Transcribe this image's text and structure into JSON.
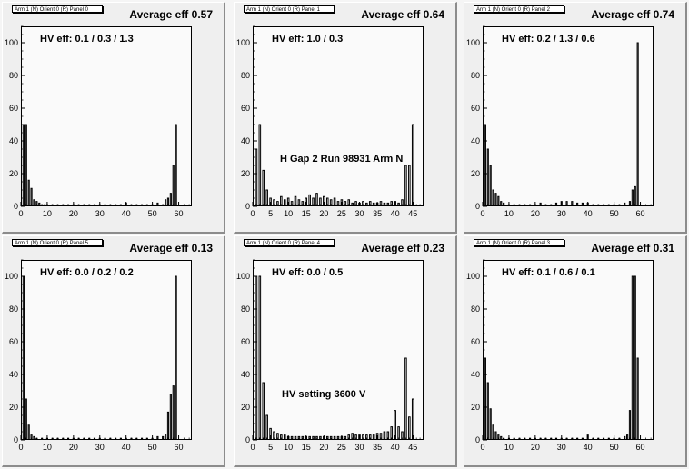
{
  "panels": [
    {
      "title": "Arm 1 (N) Orient 0 (R) Panel 0",
      "avg": "Average eff 0.57",
      "hv": "HV eff:   0.1 / 0.3 / 1.3",
      "note": "",
      "chart_data": {
        "type": "bar",
        "xlim": [
          0,
          65
        ],
        "ylim": [
          0,
          110
        ],
        "xticks": [
          0,
          10,
          20,
          30,
          40,
          50,
          60
        ],
        "yticks": [
          0,
          20,
          40,
          60,
          80,
          100
        ],
        "x": [
          1,
          2,
          3,
          4,
          5,
          6,
          7,
          8,
          9,
          10,
          12,
          14,
          16,
          18,
          20,
          22,
          24,
          26,
          28,
          30,
          32,
          34,
          36,
          38,
          40,
          42,
          44,
          46,
          48,
          50,
          52,
          54,
          55,
          56,
          57,
          58,
          59
        ],
        "values": [
          50,
          50,
          16,
          11,
          4,
          3,
          2,
          1,
          1,
          1,
          1,
          1,
          1,
          1,
          1,
          1,
          1,
          1,
          1,
          1,
          1,
          1,
          1,
          1,
          2,
          1,
          1,
          1,
          1,
          1,
          2,
          1,
          4,
          5,
          8,
          25,
          50
        ]
      }
    },
    {
      "title": "Arm 1 (N) Orient 0 (R) Panel 1",
      "avg": "Average eff 0.64",
      "hv": "HV eff:   1.0 / 0.3",
      "note": "H Gap 2 Run 98931 Arm N",
      "chart_data": {
        "type": "bar",
        "xlim": [
          0,
          48
        ],
        "ylim": [
          0,
          110
        ],
        "xticks": [
          0,
          5,
          10,
          15,
          20,
          25,
          30,
          35,
          40,
          45
        ],
        "yticks": [
          0,
          20,
          40,
          60,
          80,
          100
        ],
        "x": [
          1,
          2,
          3,
          4,
          5,
          6,
          7,
          8,
          9,
          10,
          11,
          12,
          13,
          14,
          15,
          16,
          17,
          18,
          19,
          20,
          21,
          22,
          23,
          24,
          25,
          26,
          27,
          28,
          29,
          30,
          31,
          32,
          33,
          34,
          35,
          36,
          37,
          38,
          39,
          40,
          41,
          42,
          43,
          44,
          45
        ],
        "values": [
          35,
          50,
          22,
          10,
          5,
          4,
          3,
          6,
          4,
          5,
          3,
          6,
          4,
          3,
          5,
          7,
          5,
          8,
          5,
          6,
          5,
          4,
          5,
          3,
          4,
          3,
          4,
          2,
          3,
          2,
          3,
          2,
          3,
          2,
          2,
          3,
          2,
          2,
          3,
          3,
          2,
          4,
          25,
          25,
          50
        ]
      }
    },
    {
      "title": "Arm 1 (N) Orient 0 (R) Panel 2",
      "avg": "Average eff 0.74",
      "hv": "HV eff:   0.2 / 1.3 / 0.6",
      "note": "",
      "chart_data": {
        "type": "bar",
        "xlim": [
          0,
          65
        ],
        "ylim": [
          0,
          110
        ],
        "xticks": [
          0,
          10,
          20,
          30,
          40,
          50,
          60
        ],
        "yticks": [
          0,
          20,
          40,
          60,
          80,
          100
        ],
        "x": [
          1,
          2,
          3,
          4,
          5,
          6,
          7,
          8,
          10,
          12,
          14,
          16,
          18,
          20,
          22,
          24,
          26,
          28,
          30,
          32,
          34,
          36,
          38,
          40,
          42,
          44,
          46,
          48,
          50,
          52,
          54,
          56,
          57,
          58,
          59
        ],
        "values": [
          50,
          35,
          25,
          10,
          8,
          6,
          3,
          2,
          1,
          1,
          1,
          1,
          1,
          1,
          2,
          1,
          1,
          2,
          3,
          3,
          3,
          2,
          2,
          2,
          1,
          1,
          1,
          1,
          1,
          1,
          2,
          3,
          10,
          12,
          100
        ]
      }
    },
    {
      "title": "Arm 1 (N) Orient 0 (R) Panel 5",
      "avg": "Average eff 0.13",
      "hv": "HV eff:   0.0 / 0.2 / 0.2",
      "note": "",
      "chart_data": {
        "type": "bar",
        "xlim": [
          0,
          65
        ],
        "ylim": [
          0,
          110
        ],
        "xticks": [
          0,
          10,
          20,
          30,
          40,
          50,
          60
        ],
        "yticks": [
          0,
          20,
          40,
          60,
          80,
          100
        ],
        "x": [
          1,
          2,
          3,
          4,
          5,
          6,
          8,
          10,
          12,
          14,
          16,
          18,
          20,
          22,
          24,
          26,
          28,
          30,
          32,
          34,
          36,
          38,
          40,
          42,
          44,
          46,
          48,
          50,
          52,
          54,
          55,
          56,
          57,
          58,
          59
        ],
        "values": [
          100,
          25,
          9,
          3,
          2,
          1,
          1,
          1,
          1,
          1,
          1,
          1,
          1,
          1,
          1,
          1,
          1,
          1,
          1,
          1,
          1,
          1,
          1,
          1,
          1,
          1,
          1,
          1,
          2,
          2,
          3,
          17,
          28,
          33,
          100
        ]
      }
    },
    {
      "title": "Arm 1 (N) Orient 0 (R) Panel 4",
      "avg": "Average eff 0.23",
      "hv": "HV eff:   0.0 / 0.5",
      "note": "HV setting 3600 V",
      "chart_data": {
        "type": "bar",
        "xlim": [
          0,
          48
        ],
        "ylim": [
          0,
          110
        ],
        "xticks": [
          0,
          5,
          10,
          15,
          20,
          25,
          30,
          35,
          40,
          45
        ],
        "yticks": [
          0,
          20,
          40,
          60,
          80,
          100
        ],
        "x": [
          1,
          2,
          3,
          4,
          5,
          6,
          7,
          8,
          9,
          10,
          11,
          12,
          13,
          14,
          15,
          16,
          17,
          18,
          19,
          20,
          21,
          22,
          23,
          24,
          25,
          26,
          27,
          28,
          29,
          30,
          31,
          32,
          33,
          34,
          35,
          36,
          37,
          38,
          39,
          40,
          41,
          42,
          43,
          44,
          45
        ],
        "values": [
          100,
          100,
          35,
          15,
          7,
          5,
          4,
          3,
          3,
          2,
          2,
          2,
          2,
          2,
          2,
          2,
          2,
          2,
          2,
          2,
          2,
          2,
          2,
          2,
          2,
          2,
          3,
          4,
          3,
          3,
          3,
          3,
          3,
          3,
          4,
          4,
          5,
          5,
          8,
          18,
          8,
          5,
          50,
          14,
          25
        ]
      }
    },
    {
      "title": "Arm 1 (N) Orient 0 (R) Panel 3",
      "avg": "Average eff 0.31",
      "hv": "HV eff:   0.1 / 0.6 / 0.1",
      "note": "",
      "chart_data": {
        "type": "bar",
        "xlim": [
          0,
          65
        ],
        "ylim": [
          0,
          110
        ],
        "xticks": [
          0,
          10,
          20,
          30,
          40,
          50,
          60
        ],
        "yticks": [
          0,
          20,
          40,
          60,
          80,
          100
        ],
        "x": [
          1,
          2,
          3,
          4,
          5,
          6,
          7,
          8,
          10,
          12,
          14,
          16,
          18,
          20,
          22,
          24,
          26,
          28,
          30,
          32,
          34,
          36,
          38,
          40,
          42,
          44,
          46,
          48,
          50,
          52,
          54,
          55,
          56,
          57,
          58,
          59
        ],
        "values": [
          50,
          35,
          19,
          9,
          5,
          3,
          2,
          1,
          1,
          1,
          1,
          1,
          1,
          1,
          1,
          1,
          1,
          1,
          1,
          1,
          1,
          1,
          1,
          3,
          1,
          1,
          1,
          1,
          1,
          1,
          2,
          3,
          18,
          100,
          100,
          50
        ]
      }
    }
  ]
}
